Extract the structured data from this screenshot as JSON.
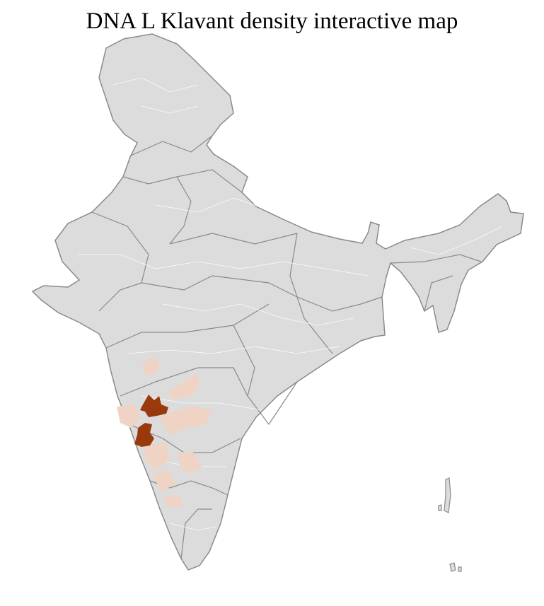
{
  "title": "DNA L Klavant density interactive map",
  "colors": {
    "background_region": "#dcdcdc",
    "district_border": "#ffffff",
    "state_border": "#8a8a8a",
    "low_density": "#efd3c5",
    "high_density": "#9a3a0c"
  }
}
